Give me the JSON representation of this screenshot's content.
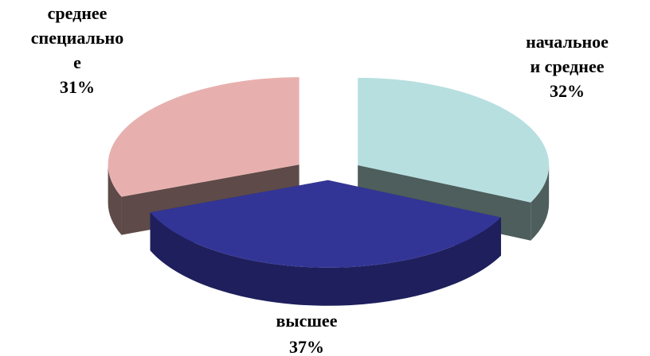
{
  "chart_data": {
    "type": "pie",
    "style": "3d-exploded",
    "legend": "none",
    "slices": [
      {
        "label_lines": [
          "начальное",
          "и среднее"
        ],
        "value": 32,
        "value_label": "32%",
        "color": "#b7dfe0",
        "side_color": "#4d5e5c"
      },
      {
        "label_lines": [
          "высшее"
        ],
        "value": 37,
        "value_label": "37%",
        "color": "#333596",
        "side_color": "#1e1f5c"
      },
      {
        "label_lines": [
          "среднее",
          "специально",
          "е"
        ],
        "value": 31,
        "value_label": "31%",
        "color": "#e7b0ae",
        "side_color": "#5e4a48"
      }
    ]
  }
}
